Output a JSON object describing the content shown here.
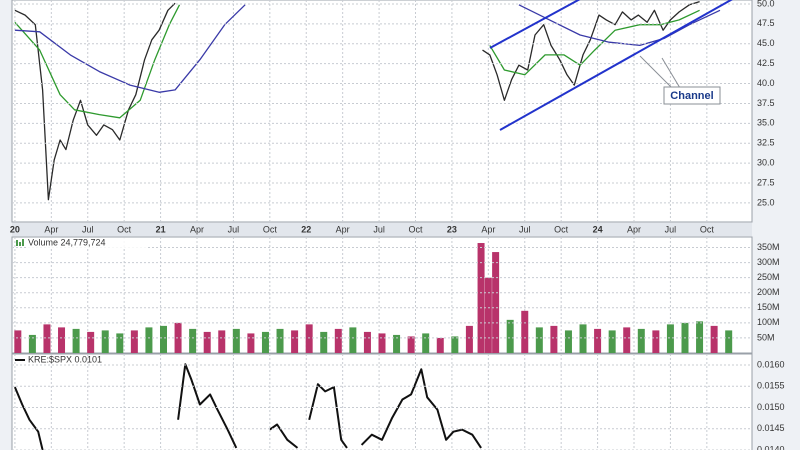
{
  "chart_data": [
    {
      "type": "line",
      "xlim": [
        2019.98,
        2025.06
      ],
      "ylim": [
        22.6,
        50.5
      ],
      "xticks": [
        {
          "value": 2020,
          "label": "20"
        },
        {
          "value": 2020.25,
          "label": "Apr"
        },
        {
          "value": 2020.5,
          "label": "Jul"
        },
        {
          "value": 2020.75,
          "label": "Oct"
        },
        {
          "value": 2021,
          "label": "21"
        },
        {
          "value": 2021.25,
          "label": "Apr"
        },
        {
          "value": 2021.5,
          "label": "Jul"
        },
        {
          "value": 2021.75,
          "label": "Oct"
        },
        {
          "value": 2022,
          "label": "22"
        },
        {
          "value": 2022.25,
          "label": "Apr"
        },
        {
          "value": 2022.5,
          "label": "Jul"
        },
        {
          "value": 2022.75,
          "label": "Oct"
        },
        {
          "value": 2023,
          "label": "23"
        },
        {
          "value": 2023.25,
          "label": "Apr"
        },
        {
          "value": 2023.5,
          "label": "Jul"
        },
        {
          "value": 2023.75,
          "label": "Oct"
        },
        {
          "value": 2024,
          "label": "24"
        },
        {
          "value": 2024.25,
          "label": "Apr"
        },
        {
          "value": 2024.5,
          "label": "Jul"
        },
        {
          "value": 2024.75,
          "label": "Oct"
        }
      ],
      "yticks": [
        {
          "value": 25,
          "label": "25.0"
        },
        {
          "value": 27.5,
          "label": "27.5"
        },
        {
          "value": 30,
          "label": "30.0"
        },
        {
          "value": 32.5,
          "label": "32.5"
        },
        {
          "value": 35,
          "label": "35.0"
        },
        {
          "value": 37.5,
          "label": "37.5"
        },
        {
          "value": 40,
          "label": "40.0"
        },
        {
          "value": 42.5,
          "label": "42.5"
        },
        {
          "value": 45,
          "label": "45.0"
        },
        {
          "value": 47.5,
          "label": "47.5"
        },
        {
          "value": 50,
          "label": "50.0"
        }
      ],
      "grid": true,
      "annotations": [
        "Channel"
      ],
      "series": [
        {
          "color": "#2a2a2a",
          "x": [
            2020.0,
            2020.07,
            2020.14,
            2020.19,
            2020.23,
            2020.27,
            2020.31,
            2020.35,
            2020.4,
            2020.45,
            2020.5,
            2020.56,
            2020.61,
            2020.67,
            2020.72,
            2020.78,
            2020.83,
            2020.89,
            2020.94,
            2020.99,
            2021.05,
            2021.1,
            2022.0,
            2023.21,
            2023.26,
            2023.31,
            2023.36,
            2023.41,
            2023.46,
            2023.52,
            2023.57,
            2023.63,
            2023.68,
            2023.74,
            2023.79,
            2023.84,
            2023.9,
            2023.95,
            2024.01,
            2024.06,
            2024.12,
            2024.17,
            2024.23,
            2024.28,
            2024.34,
            2024.39,
            2024.45,
            2024.5,
            2024.56,
            2024.63,
            2024.7
          ],
          "values": [
            49.2,
            48.6,
            47.4,
            39.2,
            25.4,
            30.4,
            32.9,
            31.7,
            35.4,
            37.9,
            34.8,
            33.5,
            34.8,
            34.2,
            32.9,
            36.7,
            38.6,
            43.0,
            45.5,
            46.7,
            49.2,
            50.1,
            null,
            44.2,
            43.6,
            41.1,
            37.9,
            40.5,
            42.3,
            41.7,
            46.1,
            47.4,
            44.8,
            43.0,
            41.1,
            39.8,
            43.6,
            45.5,
            48.6,
            48.0,
            47.4,
            49.0,
            48.0,
            48.6,
            47.7,
            49.2,
            46.7,
            48.0,
            49.0,
            49.9,
            50.3
          ]
        },
        {
          "color": "#2e9a2e",
          "x": [
            2020.0,
            2020.17,
            2020.31,
            2020.41,
            2020.58,
            2020.72,
            2020.86,
            2020.96,
            2021.06,
            2021.13,
            2022.0,
            2023.26,
            2023.36,
            2023.5,
            2023.64,
            2023.77,
            2023.88,
            2023.98,
            2024.12,
            2024.29,
            2024.43,
            2024.56,
            2024.7
          ],
          "values": [
            47.7,
            44.2,
            38.6,
            36.7,
            36.1,
            35.7,
            37.9,
            43.0,
            47.4,
            49.9,
            null,
            44.8,
            41.7,
            41.1,
            43.6,
            43.6,
            42.3,
            44.2,
            46.7,
            47.4,
            47.4,
            48.0,
            49.2
          ]
        },
        {
          "color": "#3a3aa8",
          "x": [
            2020.0,
            2020.17,
            2020.38,
            2020.58,
            2020.79,
            2020.99,
            2021.1,
            2021.27,
            2021.44,
            2021.58,
            2022.5,
            2023.46,
            2023.67,
            2023.88,
            2024.08,
            2024.29,
            2024.46,
            2024.63,
            2024.84
          ],
          "values": [
            46.7,
            46.5,
            43.6,
            41.5,
            39.8,
            38.9,
            39.2,
            43.0,
            47.4,
            49.9,
            null,
            49.9,
            48.0,
            46.1,
            45.2,
            44.8,
            45.7,
            47.4,
            49.2
          ]
        }
      ]
    },
    {
      "type": "bar",
      "title": "Volume 24,779,724",
      "xlim": [
        2019.98,
        2025.06
      ],
      "ylim": [
        0,
        385000000
      ],
      "yticks": [
        {
          "value": 50000000,
          "label": "50M"
        },
        {
          "value": 100000000,
          "label": "100M"
        },
        {
          "value": 150000000,
          "label": "150M"
        },
        {
          "value": 200000000,
          "label": "200M"
        },
        {
          "value": 250000000,
          "label": "250M"
        },
        {
          "value": 300000000,
          "label": "300M"
        },
        {
          "value": 350000000,
          "label": "350M"
        }
      ],
      "grid": true,
      "x": [
        2020.02,
        2020.12,
        2020.22,
        2020.32,
        2020.42,
        2020.52,
        2020.62,
        2020.72,
        2020.82,
        2020.92,
        2021.02,
        2021.12,
        2021.22,
        2021.32,
        2021.42,
        2021.52,
        2021.62,
        2021.72,
        2021.82,
        2021.92,
        2022.02,
        2022.12,
        2022.22,
        2022.32,
        2022.42,
        2022.52,
        2022.62,
        2022.72,
        2022.82,
        2022.92,
        2023.02,
        2023.12,
        2023.2,
        2023.25,
        2023.3,
        2023.4,
        2023.5,
        2023.6,
        2023.7,
        2023.8,
        2023.9,
        2024.0,
        2024.1,
        2024.2,
        2024.3,
        2024.4,
        2024.5,
        2024.6,
        2024.7,
        2024.8,
        2024.9
      ],
      "values": [
        75000000,
        60000000,
        95000000,
        85000000,
        80000000,
        70000000,
        75000000,
        65000000,
        75000000,
        85000000,
        90000000,
        100000000,
        80000000,
        70000000,
        75000000,
        80000000,
        65000000,
        70000000,
        80000000,
        75000000,
        95000000,
        70000000,
        80000000,
        85000000,
        70000000,
        65000000,
        60000000,
        55000000,
        65000000,
        50000000,
        55000000,
        90000000,
        365000000,
        250000000,
        335000000,
        110000000,
        140000000,
        85000000,
        90000000,
        75000000,
        95000000,
        80000000,
        75000000,
        85000000,
        80000000,
        75000000,
        95000000,
        100000000,
        105000000,
        90000000,
        75000000
      ],
      "colors": [
        "#b8336a",
        "#4c9a4c",
        "#b8336a",
        "#b8336a",
        "#4c9a4c",
        "#b8336a",
        "#4c9a4c",
        "#4c9a4c",
        "#b8336a",
        "#4c9a4c",
        "#4c9a4c",
        "#b8336a",
        "#4c9a4c",
        "#b8336a",
        "#b8336a",
        "#4c9a4c",
        "#b8336a",
        "#4c9a4c",
        "#4c9a4c",
        "#b8336a",
        "#b8336a",
        "#4c9a4c",
        "#b8336a",
        "#4c9a4c",
        "#b8336a",
        "#b8336a",
        "#4c9a4c",
        "#b8336a",
        "#4c9a4c",
        "#b8336a",
        "#4c9a4c",
        "#b8336a",
        "#b8336a",
        "#b8336a",
        "#b8336a",
        "#4c9a4c",
        "#b8336a",
        "#4c9a4c",
        "#b8336a",
        "#4c9a4c",
        "#4c9a4c",
        "#b8336a",
        "#4c9a4c",
        "#b8336a",
        "#4c9a4c",
        "#b8336a",
        "#4c9a4c",
        "#4c9a4c",
        "#4c9a4c",
        "#b8336a",
        "#4c9a4c"
      ]
    },
    {
      "type": "line",
      "title": "KRE:$SPX 0.0101",
      "xlim": [
        2019.98,
        2025.06
      ],
      "ylim": [
        0.014,
        0.01626
      ],
      "yticks": [
        {
          "value": 0.014,
          "label": "0.0140"
        },
        {
          "value": 0.0145,
          "label": "0.0145"
        },
        {
          "value": 0.015,
          "label": "0.0150"
        },
        {
          "value": 0.0155,
          "label": "0.0155"
        },
        {
          "value": 0.016,
          "label": "0.0160"
        }
      ],
      "grid": true,
      "series": [
        {
          "color": "#111111",
          "x": [
            2020.0,
            2020.05,
            2020.1,
            2020.16,
            2020.19,
            2020.6,
            2021.12,
            2021.17,
            2021.21,
            2021.27,
            2021.34,
            2021.39,
            2021.46,
            2021.52,
            2021.63,
            2021.75,
            2021.8,
            2021.87,
            2021.94,
            2021.98,
            2022.02,
            2022.08,
            2022.13,
            2022.19,
            2022.24,
            2022.28,
            2022.33,
            2022.38,
            2022.45,
            2022.52,
            2022.59,
            2022.66,
            2022.72,
            2022.79,
            2022.83,
            2022.9,
            2022.96,
            2023.01,
            2023.07,
            2023.14,
            2023.2
          ],
          "values": [
            0.01548,
            0.01507,
            0.01471,
            0.01443,
            0.014,
            null,
            0.01471,
            0.01602,
            0.01567,
            0.01507,
            0.01531,
            0.01495,
            0.01448,
            0.01405,
            null,
            0.01448,
            0.0146,
            0.01424,
            0.01405,
            null,
            0.01471,
            0.01555,
            0.01538,
            0.01548,
            0.01424,
            0.01405,
            null,
            0.01412,
            0.01436,
            0.01424,
            0.01476,
            0.01519,
            0.01531,
            0.0159,
            0.01524,
            0.01495,
            0.01424,
            0.01443,
            0.01448,
            0.01436,
            0.01405
          ]
        }
      ]
    }
  ]
}
